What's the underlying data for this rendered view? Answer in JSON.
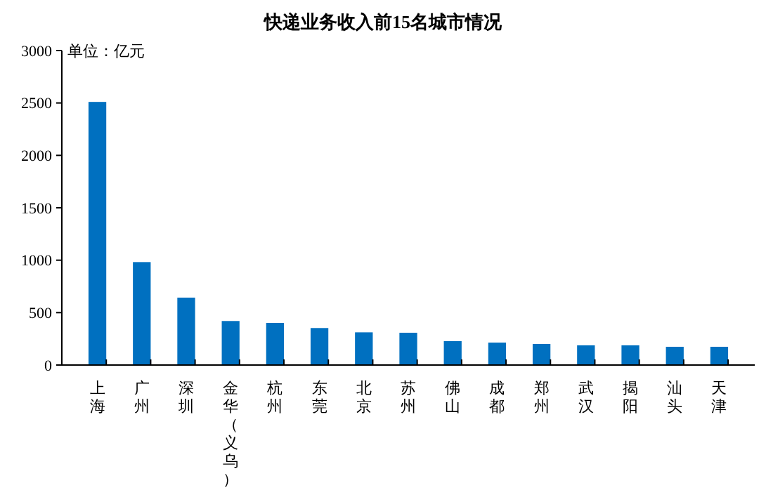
{
  "chart_data": {
    "type": "bar",
    "title": "快递业务收入前15名城市情况",
    "annotations": [
      "单位：亿元"
    ],
    "categories": [
      "上海",
      "广州",
      "深圳",
      "金华（义乌）",
      "杭州",
      "东莞",
      "北京",
      "苏州",
      "佛山",
      "成都",
      "郑州",
      "武汉",
      "揭阳",
      "汕头",
      "天津"
    ],
    "values": [
      2510,
      982,
      643,
      420,
      402,
      353,
      312,
      308,
      228,
      214,
      201,
      188,
      188,
      174,
      174
    ],
    "color": "#0070c0",
    "ylim": [
      0,
      3000
    ],
    "yticks": [
      0,
      500,
      1000,
      1500,
      2000,
      2500,
      3000
    ],
    "grid": false
  }
}
